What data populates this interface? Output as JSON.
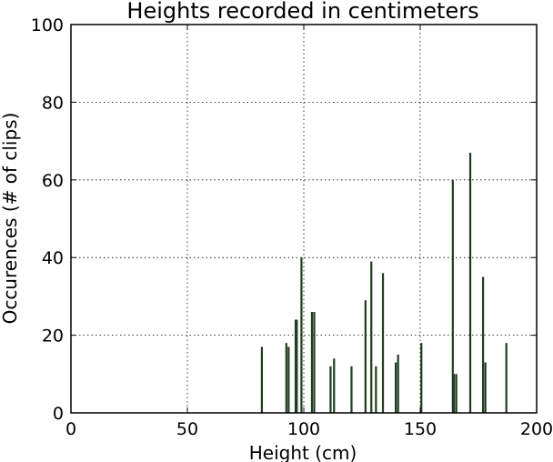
{
  "chart_data": {
    "type": "bar",
    "title": "Heights recorded in centimeters",
    "xlabel": "Height (cm)",
    "ylabel": "Occurences (# of clips)",
    "xlim": [
      0,
      200
    ],
    "ylim": [
      0,
      100
    ],
    "xticks": [
      "0",
      "50",
      "100",
      "150",
      "200"
    ],
    "yticks": [
      "0",
      "20",
      "40",
      "60",
      "80",
      "100"
    ],
    "grid": true,
    "legend": "none",
    "bar_color": "#1f3d1f",
    "x": [
      82,
      92.5,
      93.5,
      96.5,
      97,
      99,
      103.5,
      104.5,
      111.5,
      113,
      120.5,
      126.5,
      129,
      131,
      134,
      139.5,
      140.5,
      150.5,
      164,
      164.5,
      165.5,
      171.5,
      177,
      178,
      187
    ],
    "values": [
      17,
      18,
      17,
      24,
      24,
      40,
      26,
      26,
      12,
      14,
      12,
      29,
      39,
      12,
      36,
      13,
      15,
      18,
      60,
      10,
      10,
      67,
      35,
      13,
      18
    ]
  }
}
